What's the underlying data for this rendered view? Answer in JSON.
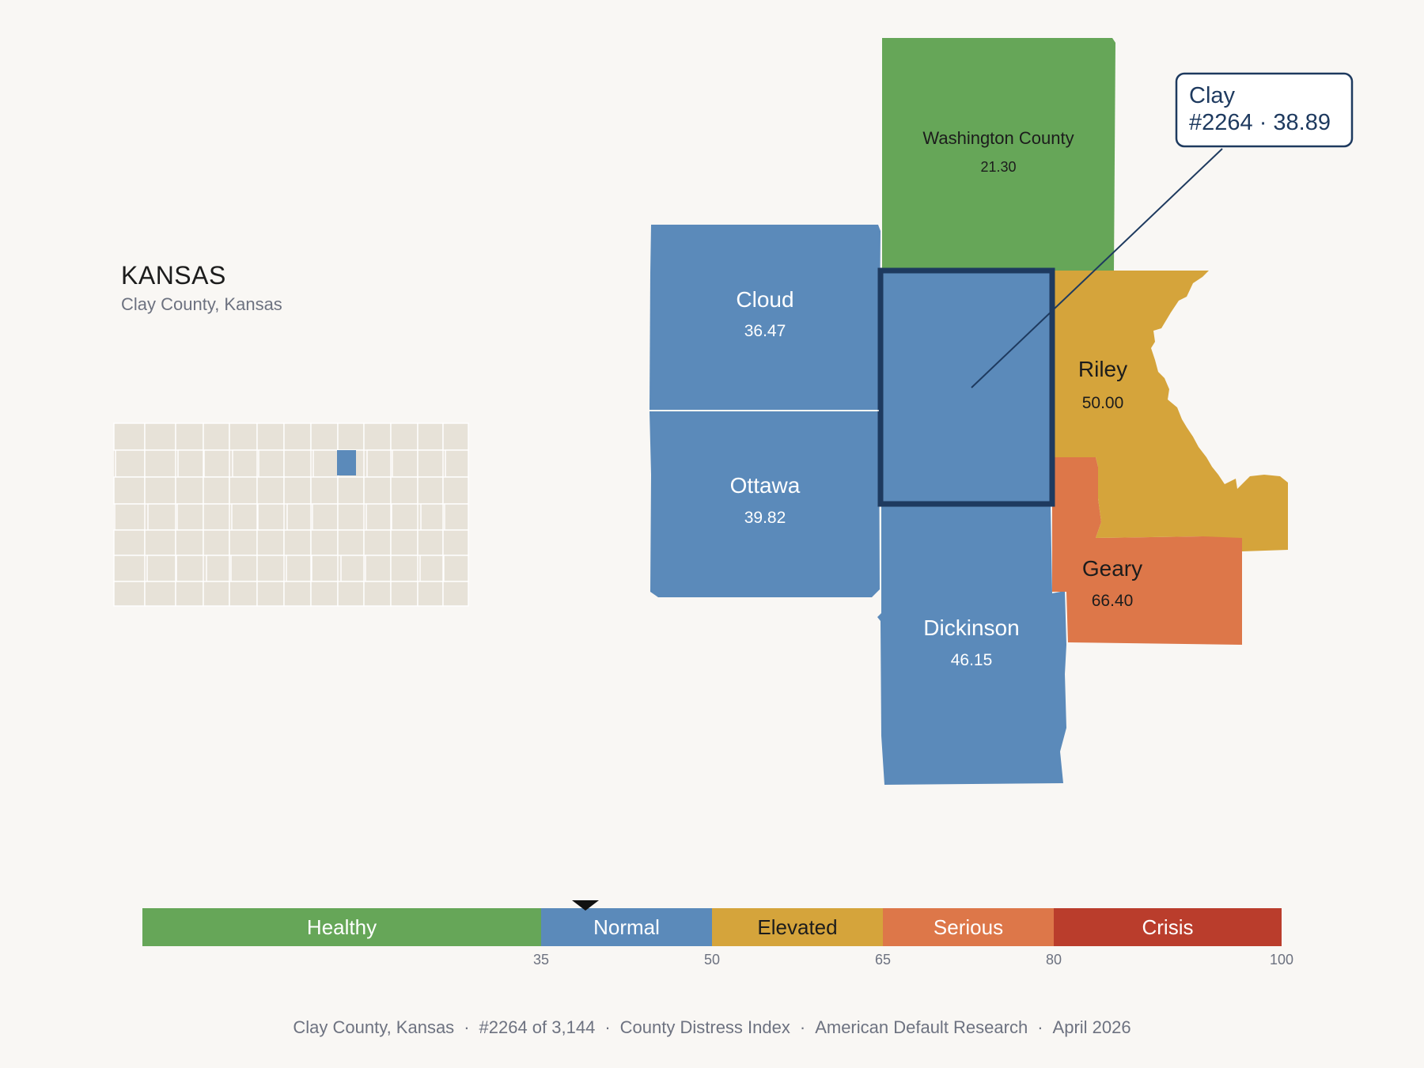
{
  "header": {
    "state_title": "KANSAS",
    "subtitle": "Clay County, Kansas"
  },
  "focus_county": {
    "name": "Clay",
    "rank_label": "#2264 · 38.89",
    "score": 38.89
  },
  "neighbors": [
    {
      "id": "washington",
      "name": "Washington County",
      "score_label": "21.30",
      "score": 21.3,
      "category": "Healthy"
    },
    {
      "id": "cloud",
      "name": "Cloud",
      "score_label": "36.47",
      "score": 36.47,
      "category": "Normal"
    },
    {
      "id": "ottawa",
      "name": "Ottawa",
      "score_label": "39.82",
      "score": 39.82,
      "category": "Normal"
    },
    {
      "id": "riley",
      "name": "Riley",
      "score_label": "50.00",
      "score": 50.0,
      "category": "Elevated"
    },
    {
      "id": "geary",
      "name": "Geary",
      "score_label": "66.40",
      "score": 66.4,
      "category": "Serious"
    },
    {
      "id": "dickinson",
      "name": "Dickinson",
      "score_label": "46.15",
      "score": 46.15,
      "category": "Normal"
    }
  ],
  "scale": {
    "min": 0,
    "max": 100,
    "marker_value": 38.89,
    "bands": [
      {
        "label": "Healthy",
        "from": 0,
        "to": 35,
        "color": "#66a658"
      },
      {
        "label": "Normal",
        "from": 35,
        "to": 50,
        "color": "#5b8aba"
      },
      {
        "label": "Elevated",
        "from": 50,
        "to": 65,
        "color": "#d5a43b"
      },
      {
        "label": "Serious",
        "from": 65,
        "to": 80,
        "color": "#dd7749"
      },
      {
        "label": "Crisis",
        "from": 80,
        "to": 100,
        "color": "#ba3d2c"
      }
    ],
    "tick_labels": [
      "35",
      "50",
      "65",
      "80",
      "100"
    ]
  },
  "colors": {
    "healthy": "#66a658",
    "normal": "#5b8aba",
    "elevated": "#d5a43b",
    "serious": "#dd7749",
    "crisis": "#ba3d2c",
    "focus_outline": "#1e3a5f",
    "inset_fill": "#e7e2d8",
    "background": "#f9f7f4"
  },
  "footer": {
    "location": "Clay County, Kansas",
    "rank": "#2264 of 3,144",
    "index_name": "County Distress Index",
    "publisher": "American Default Research",
    "date": "April 2026"
  }
}
